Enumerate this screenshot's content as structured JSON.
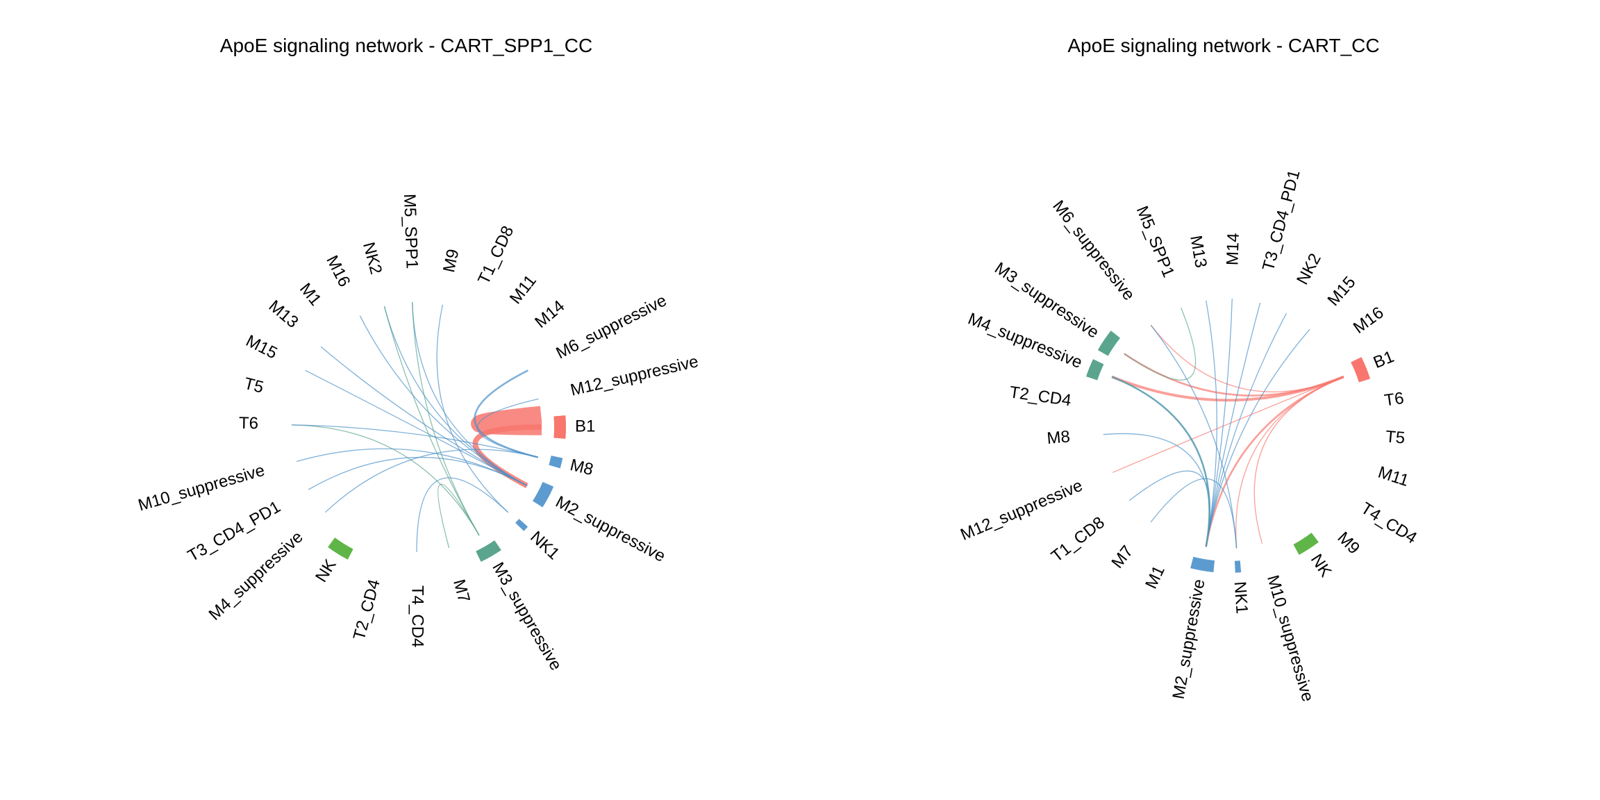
{
  "colors": {
    "B1": "#F8766D",
    "M8": "#619CFF",
    "M2_suppressive": "#619CFF",
    "M3_suppressive": "#5BA48E",
    "M4_suppressive": "#5BA48E",
    "NK": "#5FB548",
    "NK1": "#619CFF",
    "chord_blue": "#4A90C8",
    "chord_teal": "#5BA48E",
    "chord_pink": "#F8766D"
  },
  "panels": [
    {
      "title": "ApoE signaling network - CART_SPP1_CC",
      "nodes": [
        {
          "id": "B1",
          "label": "B1",
          "angle": 0,
          "bar": 1,
          "color": "#F8766D"
        },
        {
          "id": "M8",
          "label": "M8",
          "angle": -14,
          "bar": 0.45,
          "color": "#5C9BD0"
        },
        {
          "id": "M2_suppressive",
          "label": "M2_suppressive",
          "angle": -28,
          "bar": 1,
          "color": "#5C9BD0"
        },
        {
          "id": "NK1",
          "label": "NK1",
          "angle": -43,
          "bar": 0.25,
          "color": "#5C9BD0"
        },
        {
          "id": "M3_suppressive",
          "label": "M3_suppressive",
          "angle": -60,
          "bar": 1,
          "color": "#5BA48E"
        },
        {
          "id": "M7",
          "label": "M7",
          "angle": -75,
          "bar": 0,
          "color": "#5C9BD0"
        },
        {
          "id": "T4_CD4",
          "label": "T4_CD4",
          "angle": -90,
          "bar": 0,
          "color": "#5C9BD0"
        },
        {
          "id": "T2_CD4",
          "label": "T2_CD4",
          "angle": -105,
          "bar": 0,
          "color": "#5C9BD0"
        },
        {
          "id": "NK",
          "label": "NK",
          "angle": -122,
          "bar": 1,
          "color": "#5FB548"
        },
        {
          "id": "M4_suppressive",
          "label": "M4_suppressive",
          "angle": -137,
          "bar": 0,
          "color": "#5C9BD0"
        },
        {
          "id": "T3_CD4_PD1",
          "label": "T3_CD4_PD1",
          "angle": -150,
          "bar": 0,
          "color": "#5C9BD0"
        },
        {
          "id": "M10_suppressive",
          "label": "M10_suppressive",
          "angle": -164,
          "bar": 0,
          "color": "#5C9BD0"
        },
        {
          "id": "T6",
          "label": "T6",
          "angle": 179,
          "bar": 0,
          "color": "#5C9BD0"
        },
        {
          "id": "T5",
          "label": "T5",
          "angle": 166,
          "bar": 0,
          "color": "#5C9BD0"
        },
        {
          "id": "M15",
          "label": "M15",
          "angle": 153,
          "bar": 0,
          "color": "#5C9BD0"
        },
        {
          "id": "M13",
          "label": "M13",
          "angle": 140,
          "bar": 0,
          "color": "#5C9BD0"
        },
        {
          "id": "M1",
          "label": "M1",
          "angle": 129,
          "bar": 0,
          "color": "#5C9BD0"
        },
        {
          "id": "M16",
          "label": "M16",
          "angle": 117,
          "bar": 0,
          "color": "#5C9BD0"
        },
        {
          "id": "NK2",
          "label": "NK2",
          "angle": 105,
          "bar": 0,
          "color": "#5C9BD0"
        },
        {
          "id": "M5_SPP1",
          "label": "M5_SPP1",
          "angle": 92,
          "bar": 0,
          "color": "#5C9BD0"
        },
        {
          "id": "M9",
          "label": "M9",
          "angle": 78,
          "bar": 0,
          "color": "#5C9BD0"
        },
        {
          "id": "T1_CD8",
          "label": "T1_CD8",
          "angle": 65,
          "bar": 0,
          "color": "#5C9BD0"
        },
        {
          "id": "M11",
          "label": "M11",
          "angle": 52,
          "bar": 0,
          "color": "#5C9BD0"
        },
        {
          "id": "M14",
          "label": "M14",
          "angle": 40,
          "bar": 0,
          "color": "#5C9BD0"
        },
        {
          "id": "M6_suppressive",
          "label": "M6_suppressive",
          "angle": 27,
          "bar": 0,
          "color": "#5C9BD0"
        },
        {
          "id": "M12_suppressive",
          "label": "M12_suppressive",
          "angle": 13,
          "bar": 0,
          "color": "#5C9BD0"
        }
      ],
      "edges": [
        {
          "from": "B1",
          "to": "B1",
          "weight": 18,
          "color": "#F8766D"
        },
        {
          "from": "B1",
          "to": "M2_suppressive",
          "weight": 6,
          "color": "#F8766D"
        },
        {
          "from": "M8",
          "to": "M6_suppressive",
          "weight": 2,
          "color": "#4A90C8"
        },
        {
          "from": "M8",
          "to": "M12_suppressive",
          "weight": 1,
          "color": "#4A90C8"
        },
        {
          "from": "M2_suppressive",
          "to": "M15",
          "weight": 1,
          "color": "#4A90C8"
        },
        {
          "from": "M2_suppressive",
          "to": "M13",
          "weight": 1,
          "color": "#4A90C8"
        },
        {
          "from": "M2_suppressive",
          "to": "M16",
          "weight": 1,
          "color": "#4A90C8"
        },
        {
          "from": "M2_suppressive",
          "to": "NK2",
          "weight": 1,
          "color": "#4A90C8"
        },
        {
          "from": "M2_suppressive",
          "to": "M5_SPP1",
          "weight": 1,
          "color": "#4A90C8"
        },
        {
          "from": "M2_suppressive",
          "to": "M10_suppressive",
          "weight": 1,
          "color": "#4A90C8"
        },
        {
          "from": "M2_suppressive",
          "to": "T3_CD4_PD1",
          "weight": 1,
          "color": "#4A90C8"
        },
        {
          "from": "M3_suppressive",
          "to": "M5_SPP1",
          "weight": 1,
          "color": "#5BA48E"
        },
        {
          "from": "M3_suppressive",
          "to": "M7",
          "weight": 1,
          "color": "#5BA48E"
        },
        {
          "from": "M3_suppressive",
          "to": "T6",
          "weight": 1,
          "color": "#5BA48E"
        },
        {
          "from": "M3_suppressive",
          "to": "NK2",
          "weight": 1,
          "color": "#5BA48E"
        },
        {
          "from": "NK1",
          "to": "T4_CD4",
          "weight": 1,
          "color": "#4A90C8"
        },
        {
          "from": "NK1",
          "to": "M9",
          "weight": 1,
          "color": "#4A90C8"
        },
        {
          "from": "M8",
          "to": "M4_suppressive",
          "weight": 1,
          "color": "#4A90C8"
        },
        {
          "from": "M8",
          "to": "T6",
          "weight": 1,
          "color": "#4A90C8"
        }
      ]
    },
    {
      "title": "ApoE signaling network - CART_CC",
      "nodes": [
        {
          "id": "B1",
          "label": "B1",
          "angle": 22,
          "bar": 1,
          "color": "#F8766D"
        },
        {
          "id": "T6",
          "label": "T6",
          "angle": 8,
          "bar": 0,
          "color": "#5C9BD0"
        },
        {
          "id": "T5",
          "label": "T5",
          "angle": -5,
          "bar": 0,
          "color": "#5C9BD0"
        },
        {
          "id": "M11",
          "label": "M11",
          "angle": -18,
          "bar": 0,
          "color": "#5C9BD0"
        },
        {
          "id": "T4_CD4",
          "label": "T4_CD4",
          "angle": -32,
          "bar": 0,
          "color": "#5C9BD0"
        },
        {
          "id": "M9",
          "label": "M9",
          "angle": -45,
          "bar": 0,
          "color": "#5C9BD0"
        },
        {
          "id": "NK",
          "label": "NK",
          "angle": -57,
          "bar": 1,
          "color": "#5FB548"
        },
        {
          "id": "M10_suppressive",
          "label": "M10_suppressive",
          "angle": -74,
          "bar": 0,
          "color": "#5C9BD0"
        },
        {
          "id": "NK1",
          "label": "NK1",
          "angle": -86,
          "bar": 0.25,
          "color": "#5C9BD0"
        },
        {
          "id": "M2_suppressive",
          "label": "M2_suppressive",
          "angle": -100,
          "bar": 1,
          "color": "#5C9BD0"
        },
        {
          "id": "M1",
          "label": "M1",
          "angle": -115,
          "bar": 0,
          "color": "#5C9BD0"
        },
        {
          "id": "M7",
          "label": "M7",
          "angle": -128,
          "bar": 0,
          "color": "#5C9BD0"
        },
        {
          "id": "T1_CD8",
          "label": "T1_CD8",
          "angle": -142,
          "bar": 0,
          "color": "#5C9BD0"
        },
        {
          "id": "M12_suppressive",
          "label": "M12_suppressive",
          "angle": -157,
          "bar": 0,
          "color": "#5C9BD0"
        },
        {
          "id": "M8",
          "label": "M8",
          "angle": -175,
          "bar": 0,
          "color": "#5C9BD0"
        },
        {
          "id": "T2_CD4",
          "label": "T2_CD4",
          "angle": 172,
          "bar": 0,
          "color": "#5C9BD0"
        },
        {
          "id": "M4_suppressive",
          "label": "M4_suppressive",
          "angle": 158,
          "bar": 0.8,
          "color": "#5BA48E"
        },
        {
          "id": "M3_suppressive",
          "label": "M3_suppressive",
          "angle": 146,
          "bar": 1,
          "color": "#5BA48E"
        },
        {
          "id": "M6_suppressive",
          "label": "M6_suppressive",
          "angle": 128,
          "bar": 0,
          "color": "#5C9BD0"
        },
        {
          "id": "M5_SPP1",
          "label": "M5_SPP1",
          "angle": 112,
          "bar": 0,
          "color": "#5C9BD0"
        },
        {
          "id": "M13",
          "label": "M13",
          "angle": 100,
          "bar": 0,
          "color": "#5C9BD0"
        },
        {
          "id": "M14",
          "label": "M14",
          "angle": 88,
          "bar": 0,
          "color": "#5C9BD0"
        },
        {
          "id": "T3_CD4_PD1",
          "label": "T3_CD4_PD1",
          "angle": 75,
          "bar": 0,
          "color": "#5C9BD0"
        },
        {
          "id": "NK2",
          "label": "NK2",
          "angle": 62,
          "bar": 0,
          "color": "#5C9BD0"
        },
        {
          "id": "M15",
          "label": "M15",
          "angle": 49,
          "bar": 0,
          "color": "#5C9BD0"
        },
        {
          "id": "M16",
          "label": "M16",
          "angle": 36,
          "bar": 0,
          "color": "#5C9BD0"
        }
      ],
      "edges": [
        {
          "from": "B1",
          "to": "M4_suppressive",
          "weight": 3,
          "color": "#F8766D"
        },
        {
          "from": "B1",
          "to": "M3_suppressive",
          "weight": 2,
          "color": "#F8766D"
        },
        {
          "from": "B1",
          "to": "M2_suppressive",
          "weight": 2,
          "color": "#F8766D"
        },
        {
          "from": "B1",
          "to": "M12_suppressive",
          "weight": 1,
          "color": "#F8766D"
        },
        {
          "from": "B1",
          "to": "M10_suppressive",
          "weight": 1,
          "color": "#F8766D"
        },
        {
          "from": "B1",
          "to": "M6_suppressive",
          "weight": 1,
          "color": "#F8766D"
        },
        {
          "from": "B1",
          "to": "NK1",
          "weight": 1,
          "color": "#F8766D"
        },
        {
          "from": "M2_suppressive",
          "to": "T3_CD4_PD1",
          "weight": 1,
          "color": "#4A90C8"
        },
        {
          "from": "M2_suppressive",
          "to": "NK2",
          "weight": 1,
          "color": "#4A90C8"
        },
        {
          "from": "M2_suppressive",
          "to": "M15",
          "weight": 1,
          "color": "#4A90C8"
        },
        {
          "from": "M2_suppressive",
          "to": "M14",
          "weight": 1,
          "color": "#4A90C8"
        },
        {
          "from": "M2_suppressive",
          "to": "M4_suppressive",
          "weight": 2,
          "color": "#4A90C8"
        },
        {
          "from": "M2_suppressive",
          "to": "M8",
          "weight": 1,
          "color": "#4A90C8"
        },
        {
          "from": "M2_suppressive",
          "to": "T1_CD8",
          "weight": 1,
          "color": "#4A90C8"
        },
        {
          "from": "M2_suppressive",
          "to": "M13",
          "weight": 1,
          "color": "#4A90C8"
        },
        {
          "from": "M3_suppressive",
          "to": "M5_SPP1",
          "weight": 1,
          "color": "#5BA48E"
        },
        {
          "from": "M4_suppressive",
          "to": "M2_suppressive",
          "weight": 1,
          "color": "#5BA48E"
        },
        {
          "from": "NK1",
          "to": "M6_suppressive",
          "weight": 1,
          "color": "#4A90C8"
        },
        {
          "from": "NK1",
          "to": "M7",
          "weight": 1,
          "color": "#4A90C8"
        }
      ]
    }
  ]
}
